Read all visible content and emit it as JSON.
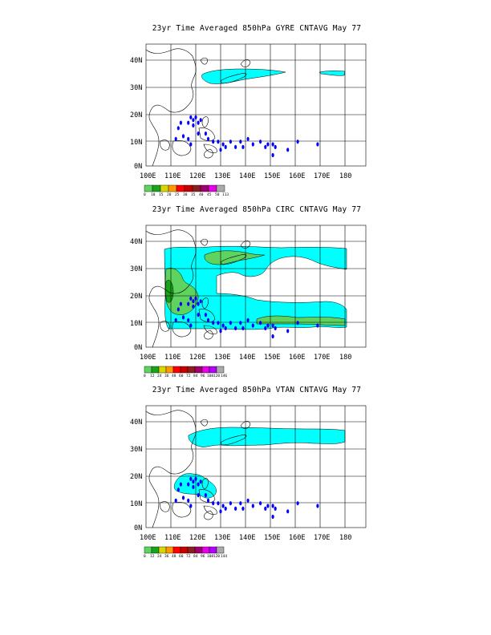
{
  "panels": [
    {
      "title": "23yr Time Averaged 850hPa GYRE CNTAVG May 77"
    },
    {
      "title": "23yr Time Averaged 850hPa CIRC CNTAVG May 77"
    },
    {
      "title": "23yr Time Averaged 850hPa VTAN CNTAVG May 77"
    }
  ],
  "map": {
    "lat_labels": [
      "40N",
      "30N",
      "20N",
      "10N",
      "0N"
    ],
    "lon_labels": [
      "100E",
      "110E",
      "120E",
      "130E",
      "140E",
      "150E",
      "160E",
      "170E",
      "180"
    ]
  },
  "legends": [
    {
      "labels": [
        "0",
        "10",
        "15",
        "20",
        "25",
        "30",
        "35",
        "40",
        "45",
        "50",
        "113"
      ]
    },
    {
      "labels": [
        "0",
        "12",
        "24",
        "36",
        "48",
        "60",
        "72",
        "84",
        "96",
        "108",
        "120",
        "146"
      ]
    },
    {
      "labels": [
        "0",
        "12",
        "24",
        "36",
        "48",
        "60",
        "72",
        "84",
        "96",
        "108",
        "120",
        "144"
      ]
    }
  ],
  "colors": {
    "shade": [
      "#5fd35f",
      "#19a519",
      "#d7d700",
      "#ff9900",
      "#ff0000",
      "#c80000",
      "#8c1e1e",
      "#a0006e",
      "#e600e6",
      "#b400ff",
      "#aaaaaa"
    ],
    "cyan": "#00ffff",
    "green": "#5fd35f",
    "storm": "#0000ff"
  },
  "storm_positions": [
    {
      "lon": 118,
      "lat": 18
    },
    {
      "lon": 119,
      "lat": 17
    },
    {
      "lon": 120,
      "lat": 18
    },
    {
      "lon": 121,
      "lat": 16
    },
    {
      "lon": 122,
      "lat": 17
    },
    {
      "lon": 119,
      "lat": 15
    },
    {
      "lon": 117,
      "lat": 16
    },
    {
      "lon": 114,
      "lat": 16
    },
    {
      "lon": 113,
      "lat": 14
    },
    {
      "lon": 115,
      "lat": 11
    },
    {
      "lon": 117,
      "lat": 10
    },
    {
      "lon": 112,
      "lat": 10
    },
    {
      "lon": 118,
      "lat": 8
    },
    {
      "lon": 121,
      "lat": 12
    },
    {
      "lon": 124,
      "lat": 12
    },
    {
      "lon": 125,
      "lat": 10
    },
    {
      "lon": 127,
      "lat": 9
    },
    {
      "lon": 129,
      "lat": 9
    },
    {
      "lon": 130,
      "lat": 6
    },
    {
      "lon": 131,
      "lat": 8
    },
    {
      "lon": 132,
      "lat": 7
    },
    {
      "lon": 134,
      "lat": 9
    },
    {
      "lon": 136,
      "lat": 7
    },
    {
      "lon": 138,
      "lat": 9
    },
    {
      "lon": 139,
      "lat": 7
    },
    {
      "lon": 141,
      "lat": 10
    },
    {
      "lon": 143,
      "lat": 8
    },
    {
      "lon": 146,
      "lat": 9
    },
    {
      "lon": 148,
      "lat": 7
    },
    {
      "lon": 149,
      "lat": 8
    },
    {
      "lon": 151,
      "lat": 8
    },
    {
      "lon": 151,
      "lat": 4
    },
    {
      "lon": 152,
      "lat": 7
    },
    {
      "lon": 157,
      "lat": 6
    },
    {
      "lon": 161,
      "lat": 9
    },
    {
      "lon": 169,
      "lat": 8
    }
  ]
}
